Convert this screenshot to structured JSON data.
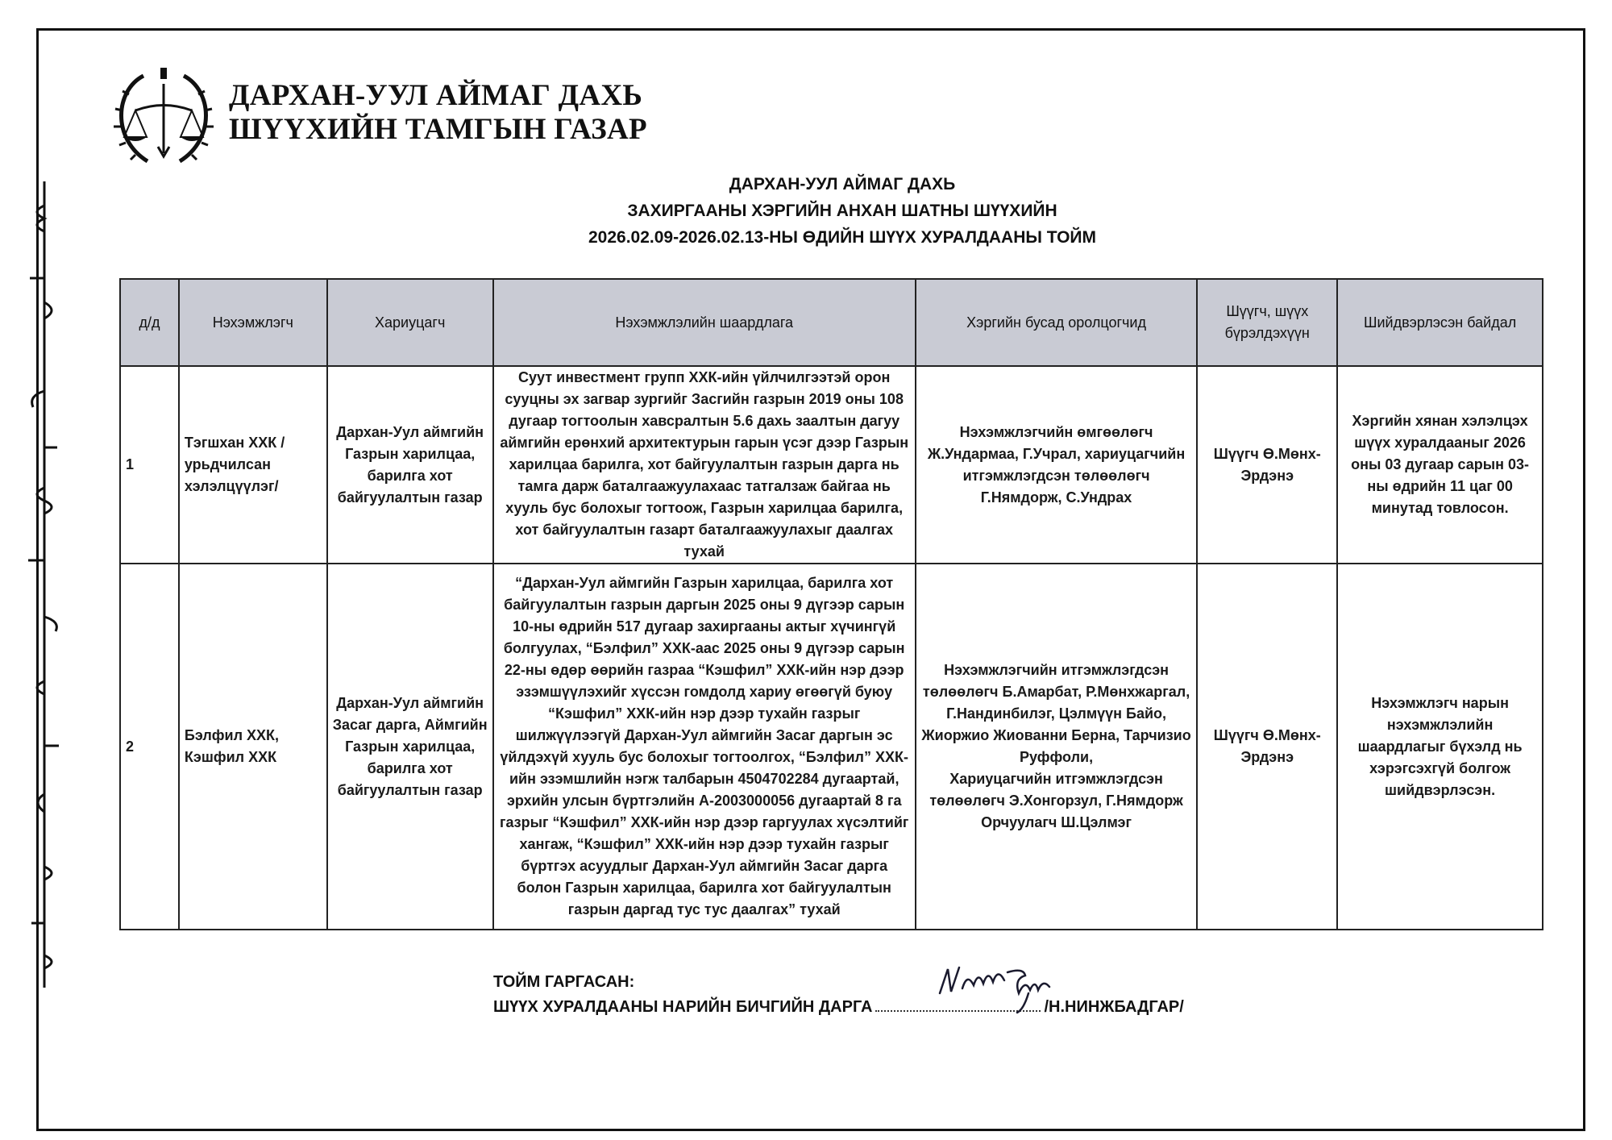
{
  "header": {
    "org_line1": "ДАРХАН-УУЛ АЙМАГ ДАХЬ",
    "org_line2": "ШҮҮХИЙН ТАМГЫН ГАЗАР",
    "logo_icon": "court-emblem-scales-icon"
  },
  "title": {
    "line1": "ДАРХАН-УУЛ АЙМАГ ДАХЬ",
    "line2": "ЗАХИРГААНЫ ХЭРГИЙН АНХАН ШАТНЫ ШҮҮХИЙН",
    "line3": "2026.02.09-2026.02.13-НЫ ӨДИЙН ШҮҮХ ХУРАЛДААНЫ ТОЙМ"
  },
  "table": {
    "columns": [
      "д/д",
      "Нэхэмжлэгч",
      "Хариуцагч",
      "Нэхэмжлэлийн шаардлага",
      "Хэргийн бусад оролцогчид",
      "Шүүгч, шүүх бүрэлдэхүүн",
      "Шийдвэрлэсэн байдал"
    ],
    "rows": [
      {
        "no": "1",
        "plaintiff": "Тэгшхан ХХК /урьдчилсан хэлэлцүүлэг/",
        "defendant": "Дархан-Уул аймгийн Газрын харилцаа,  барилга хот байгуулалтын газар",
        "claim": "Суут инвестмент групп ХХК-ийн үйлчилгээтэй орон сууцны эх загвар зургийг Засгийн газрын 2019 оны 108 дугаар тогтоолын хавсралтын 5.6 дахь заалтын дагуу аймгийн ерөнхий архитектурын гарын үсэг дээр Газрын харилцаа барилга, хот байгуулалтын газрын дарга нь тамга дарж баталгаажуулахаас татгалзаж байгаа нь хууль бус болохыг тогтоож, Газрын харилцаа барилга, хот байгуулалтын газарт баталгаажуулахыг даалгах тухай",
        "participants": "Нэхэмжлэгчийн өмгөөлөгч Ж.Ундармаа, Г.Учрал, хариуцагчийн итгэмжлэгдсэн төлөөлөгч Г.Нямдорж, С.Ундрах",
        "judge": "Шүүгч Ө.Мөнх-Эрдэнэ",
        "decision": "Хэргийн хянан хэлэлцэх шүүх хуралдааныг 2026 оны 03 дугаар сарын 03-ны өдрийн 11 цаг 00 минутад товлосон."
      },
      {
        "no": "2",
        "plaintiff": "Бэлфил ХХК, Кэшфил ХХК",
        "defendant": "Дархан-Уул аймгийн Засаг дарга, Аймгийн Газрын харилцаа, барилга хот байгуулалтын газар",
        "claim": "“Дархан-Уул аймгийн Газрын харилцаа, барилга хот байгуулалтын газрын даргын 2025 оны 9 дүгээр сарын 10-ны өдрийн 517 дугаар захиргааны актыг хүчингүй болгуулах, “Бэлфил” ХХК-аас 2025 оны 9 дүгээр сарын 22-ны өдөр өөрийн газраа “Кэшфил” ХХК-ийн нэр дээр эзэмшүүлэхийг хүссэн гомдолд хариу өгөөгүй буюу “Кэшфил” ХХК-ийн нэр дээр тухайн газрыг шилжүүлээгүй Дархан-Уул аймгийн Засаг даргын эс үйлдэхүй хууль бус болохыг  тогтоолгох, “Бэлфил” ХХК-ийн эзэмшлийн нэгж талбарын 4504702284 дугаартай, эрхийн улсын бүртгэлийн А-2003000056 дугаартай 8 га газрыг “Кэшфил” ХХК-ийн нэр дээр гаргуулах хүсэлтийг хангаж, “Кэшфил” ХХК-ийн нэр дээр тухайн газрыг бүртгэх асуудлыг Дархан-Уул аймгийн Засаг дарга болон Газрын харилцаа, барилга хот байгуулалтын газрын даргад тус тус даалгах” тухай",
        "participants": "Нэхэмжлэгчийн итгэмжлэгдсэн төлөөлөгч Б.Амарбат, Р.Мөнхжаргал, Г.Нандинбилэг, Цэлмүүн Байо, Жиоржио Жиованни Берна, Тарчизио Руффоли,\nХариуцагчийн итгэмжлэгдсэн төлөөлөгч Э.Хонгорзул, Г.Нямдорж\nОрчуулагч Ш.Цэлмэг",
        "judge": "Шүүгч Ө.Мөнх-Эрдэнэ",
        "decision": "Нэхэмжлэгч нарын нэхэмжлэлийн шаардлагыг бүхэлд нь хэрэгсэхгүй болгож шийдвэрлэсэн."
      }
    ]
  },
  "footer": {
    "label": "ТОЙМ ГАРГАСАН:",
    "position": "ШҮҮХ ХУРАЛДААНЫ НАРИЙН БИЧГИЙН ДАРГА",
    "name": "/Н.НИНЖБАДГАР/",
    "signature": "Н. Нинжбадгар"
  }
}
